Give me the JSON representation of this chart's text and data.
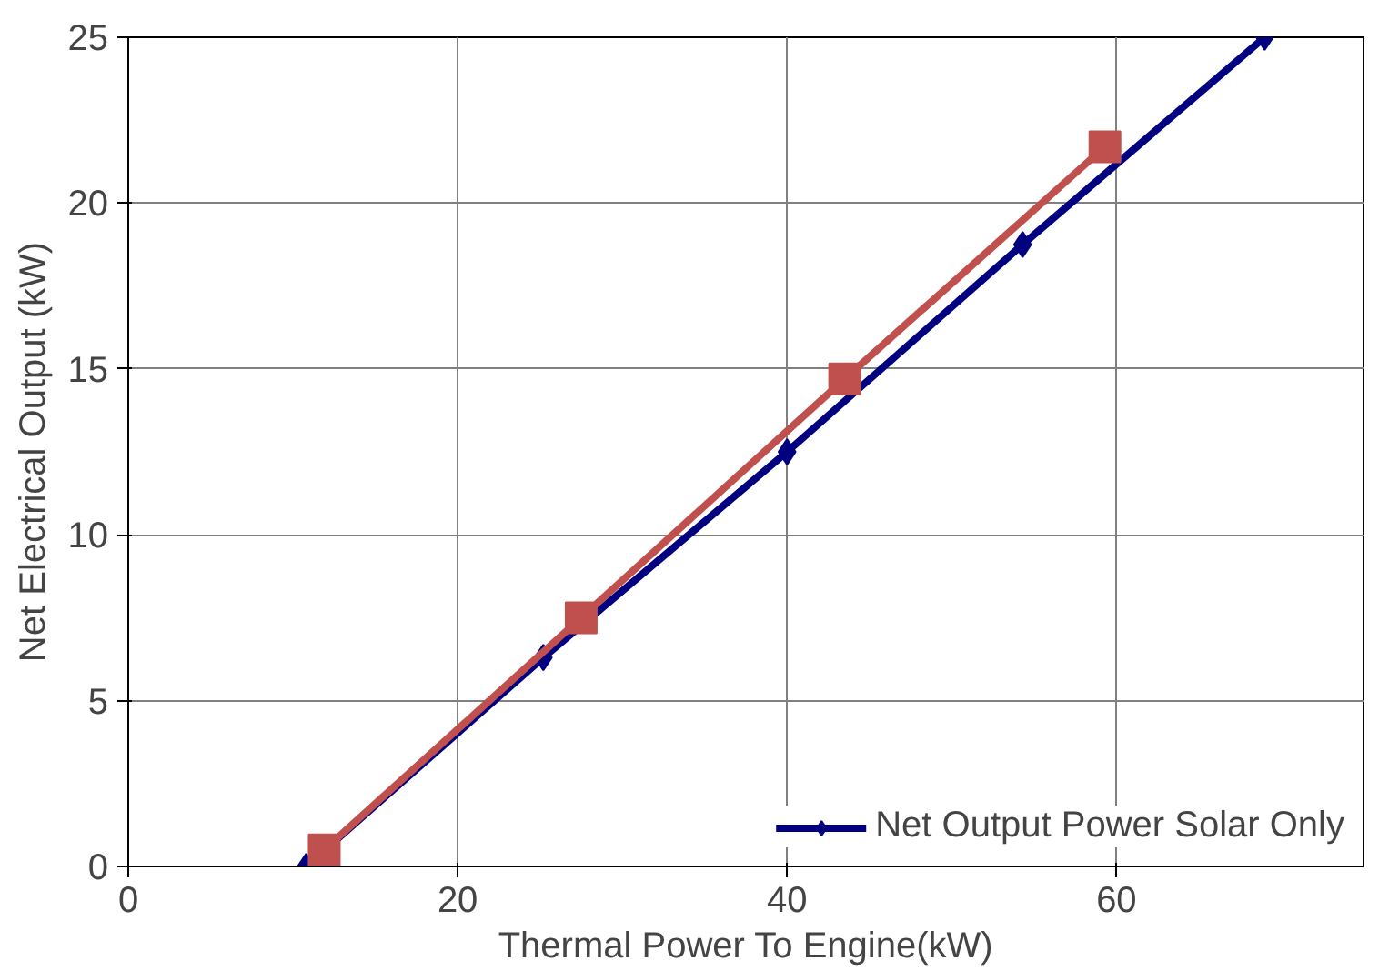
{
  "chart_data": {
    "type": "line",
    "xlabel": "Thermal Power To Engine(kW)",
    "ylabel": "Net Electrical Output (kW)",
    "xlim": [
      0,
      75
    ],
    "xticks": [
      0,
      20,
      40,
      60
    ],
    "ylim": [
      0,
      25
    ],
    "yticks": [
      0,
      5,
      10,
      15,
      20,
      25
    ],
    "grid": true,
    "legend": "bottom right",
    "series": [
      {
        "name": "Net Output Power Solar Only",
        "color": "#000080",
        "marker": "diamond",
        "x": [
          10.8,
          25.2,
          40,
          54.3,
          69
        ],
        "values": [
          0,
          6.3,
          12.5,
          18.75,
          25
        ]
      },
      {
        "color": "#c0504d",
        "marker": "square",
        "x": [
          11.9,
          27.5,
          43.5,
          59.3
        ],
        "values": [
          0.5,
          7.5,
          14.7,
          21.7
        ]
      }
    ]
  }
}
